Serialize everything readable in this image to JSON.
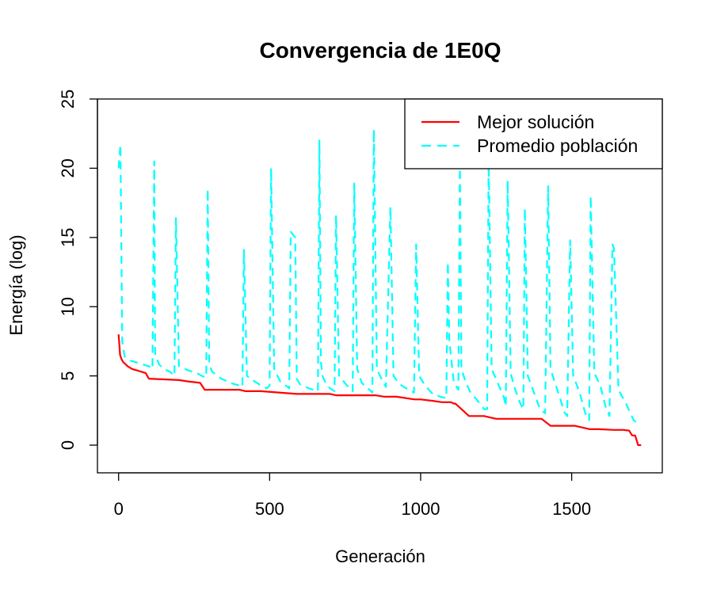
{
  "chart_data": {
    "type": "line",
    "title": "Convergencia de 1E0Q",
    "xlabel": "Generación",
    "ylabel": "Energía (log)",
    "xlim": [
      -70,
      1800
    ],
    "ylim": [
      -2,
      25
    ],
    "xticks": [
      0,
      500,
      1000,
      1500
    ],
    "yticks": [
      0,
      5,
      10,
      15,
      20,
      25
    ],
    "grid": false,
    "legend_position": "top-right",
    "series": [
      {
        "name": "Mejor solución",
        "color": "#ff0000",
        "style": "solid",
        "x": [
          0,
          5,
          10,
          15,
          30,
          45,
          60,
          90,
          100,
          200,
          230,
          270,
          285,
          300,
          400,
          420,
          470,
          530,
          590,
          700,
          720,
          800,
          850,
          880,
          920,
          980,
          1000,
          1040,
          1070,
          1080,
          1100,
          1110,
          1115,
          1120,
          1125,
          1130,
          1140,
          1160,
          1210,
          1250,
          1300,
          1330,
          1350,
          1380,
          1400,
          1430,
          1460,
          1510,
          1560,
          1590,
          1640,
          1670,
          1690,
          1700,
          1710,
          1720,
          1730
        ],
        "y": [
          8.0,
          6.5,
          6.2,
          6.0,
          5.7,
          5.5,
          5.4,
          5.2,
          4.8,
          4.7,
          4.6,
          4.5,
          4.0,
          4.0,
          4.0,
          3.9,
          3.9,
          3.8,
          3.7,
          3.7,
          3.6,
          3.6,
          3.6,
          3.5,
          3.5,
          3.3,
          3.3,
          3.2,
          3.1,
          3.1,
          3.1,
          3.0,
          3.0,
          2.9,
          2.8,
          2.7,
          2.5,
          2.1,
          2.1,
          1.9,
          1.9,
          1.9,
          1.9,
          1.9,
          1.9,
          1.4,
          1.4,
          1.4,
          1.15,
          1.15,
          1.1,
          1.1,
          1.05,
          0.7,
          0.7,
          0.0,
          0.0
        ]
      },
      {
        "name": "Promedio población",
        "color": "#00ffff",
        "style": "dashed",
        "x": [
          0,
          6,
          12,
          20,
          40,
          70,
          100,
          112,
          118,
          121,
          135,
          150,
          170,
          185,
          190,
          200,
          230,
          260,
          275,
          290,
          295,
          300,
          310,
          340,
          370,
          400,
          410,
          415,
          425,
          450,
          480,
          490,
          500,
          505,
          515,
          535,
          560,
          565,
          570,
          585,
          590,
          600,
          630,
          660,
          665,
          670,
          675,
          685,
          700,
          715,
          720,
          730,
          760,
          775,
          780,
          790,
          805,
          830,
          840,
          845,
          855,
          870,
          885,
          900,
          910,
          930,
          960,
          978,
          985,
          995,
          1015,
          1040,
          1065,
          1085,
          1090,
          1095,
          1110,
          1125,
          1130,
          1135,
          1150,
          1165,
          1185,
          1210,
          1220,
          1225,
          1235,
          1255,
          1275,
          1282,
          1288,
          1298,
          1310,
          1330,
          1340,
          1345,
          1355,
          1375,
          1395,
          1412,
          1422,
          1430,
          1445,
          1460,
          1475,
          1485,
          1495,
          1505,
          1525,
          1545,
          1558,
          1563,
          1575,
          1595,
          1612,
          1625,
          1635,
          1640,
          1655,
          1680,
          1705,
          1725
        ],
        "y": [
          20.0,
          21.7,
          7.5,
          6.4,
          6.1,
          5.9,
          5.7,
          5.5,
          20.5,
          6.5,
          5.8,
          5.5,
          5.3,
          5.0,
          16.4,
          5.7,
          5.4,
          5.2,
          5.0,
          4.9,
          18.5,
          5.8,
          5.3,
          4.8,
          4.5,
          4.3,
          4.2,
          14.1,
          5.0,
          4.6,
          4.2,
          4.1,
          4.3,
          20.0,
          5.5,
          4.6,
          4.2,
          4.1,
          15.4,
          15.0,
          4.8,
          4.4,
          4.1,
          3.9,
          22.0,
          6.0,
          5.0,
          4.5,
          4.1,
          3.9,
          16.6,
          5.0,
          4.2,
          3.9,
          18.9,
          5.5,
          4.5,
          4.0,
          3.8,
          22.8,
          5.5,
          4.8,
          4.2,
          17.2,
          5.0,
          4.4,
          4.0,
          3.8,
          14.5,
          5.0,
          4.3,
          3.7,
          3.5,
          3.4,
          13.2,
          7.5,
          4.5,
          4.0,
          20.5,
          5.5,
          4.5,
          3.8,
          3.3,
          2.6,
          2.6,
          20.8,
          5.5,
          4.5,
          3.5,
          2.8,
          19.1,
          5.2,
          4.2,
          3.0,
          2.6,
          17.1,
          5.0,
          3.8,
          2.6,
          2.3,
          18.7,
          5.5,
          4.5,
          3.5,
          2.4,
          2.1,
          14.8,
          5.0,
          3.9,
          2.3,
          1.8,
          18.0,
          5.2,
          4.3,
          2.8,
          2.1,
          14.5,
          14.2,
          4.0,
          3.0,
          1.8,
          1.5
        ]
      }
    ]
  }
}
